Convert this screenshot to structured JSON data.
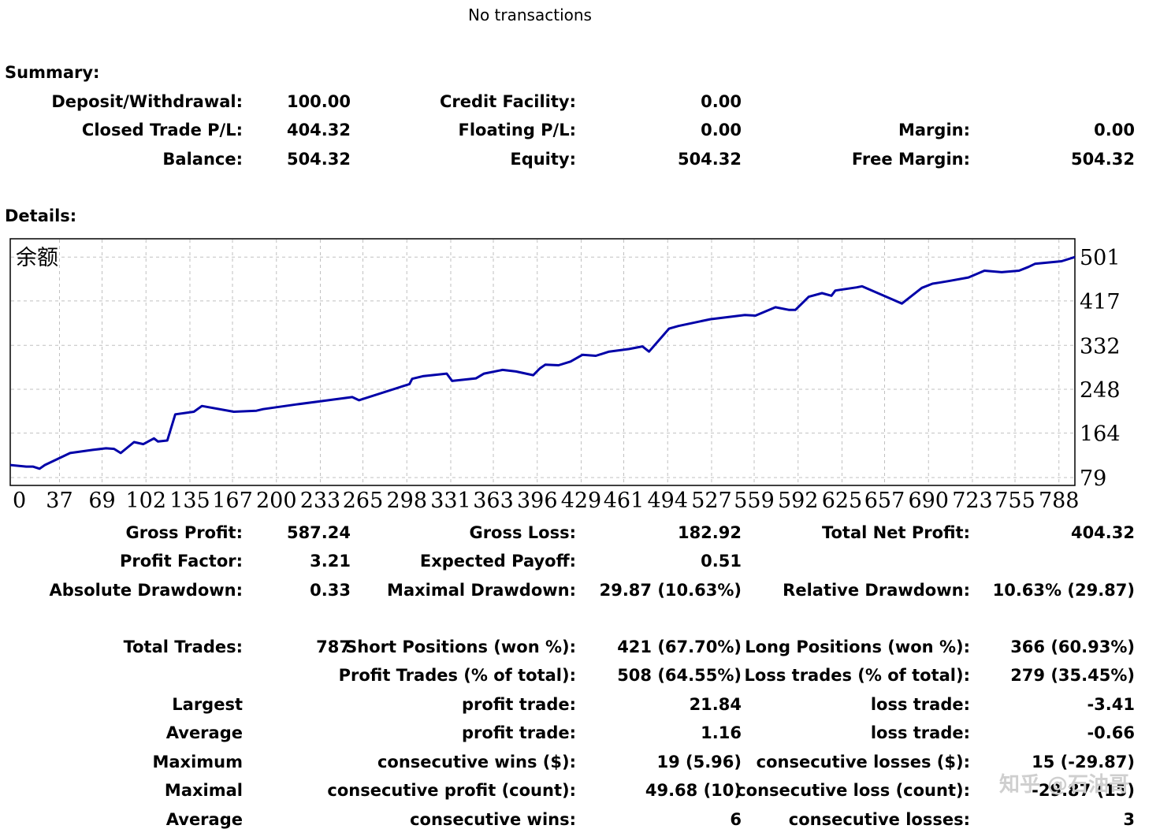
{
  "header": {
    "no_transactions": "No transactions"
  },
  "summary": {
    "title": "Summary:",
    "deposit_label": "Deposit/Withdrawal:",
    "deposit_value": "100.00",
    "credit_label": "Credit Facility:",
    "credit_value": "0.00",
    "closed_pl_label": "Closed Trade P/L:",
    "closed_pl_value": "404.32",
    "floating_pl_label": "Floating P/L:",
    "floating_pl_value": "0.00",
    "margin_label": "Margin:",
    "margin_value": "0.00",
    "balance_label": "Balance:",
    "balance_value": "504.32",
    "equity_label": "Equity:",
    "equity_value": "504.32",
    "free_margin_label": "Free Margin:",
    "free_margin_value": "504.32"
  },
  "details": {
    "title": "Details:",
    "gross_profit_label": "Gross Profit:",
    "gross_profit_value": "587.24",
    "gross_loss_label": "Gross Loss:",
    "gross_loss_value": "182.92",
    "total_net_label": "Total Net Profit:",
    "total_net_value": "404.32",
    "profit_factor_label": "Profit Factor:",
    "profit_factor_value": "3.21",
    "expected_payoff_label": "Expected Payoff:",
    "expected_payoff_value": "0.51",
    "abs_dd_label": "Absolute Drawdown:",
    "abs_dd_value": "0.33",
    "max_dd_label": "Maximal Drawdown:",
    "max_dd_value": "29.87 (10.63%)",
    "rel_dd_label": "Relative Drawdown:",
    "rel_dd_value": "10.63% (29.87)",
    "total_trades_label": "Total Trades:",
    "total_trades_value": "787",
    "short_label": "Short Positions (won %):",
    "short_value": "421 (67.70%)",
    "long_label": "Long Positions (won %):",
    "long_value": "366 (60.93%)",
    "profit_trades_label": "Profit Trades (% of total):",
    "profit_trades_value": "508 (64.55%)",
    "loss_trades_label": "Loss trades (% of total):",
    "loss_trades_value": "279 (35.45%)",
    "largest_label": "Largest",
    "largest_profit_label": "profit trade:",
    "largest_profit_value": "21.84",
    "largest_loss_label": "loss trade:",
    "largest_loss_value": "-3.41",
    "average_label": "Average",
    "avg_profit_label": "profit trade:",
    "avg_profit_value": "1.16",
    "avg_loss_label": "loss trade:",
    "avg_loss_value": "-0.66",
    "maximum_label": "Maximum",
    "max_cons_wins_label": "consecutive wins ($):",
    "max_cons_wins_value": "19 (5.96)",
    "max_cons_losses_label": "consecutive losses ($):",
    "max_cons_losses_value": "15 (-29.87)",
    "maximal_label": "Maximal",
    "maximal_cons_profit_label": "consecutive profit (count):",
    "maximal_cons_profit_value": "49.68 (10)",
    "maximal_cons_loss_label": "consecutive loss (count):",
    "maximal_cons_loss_value": "-29.87 (15)",
    "average2_label": "Average",
    "avg_cons_wins_label": "consecutive wins:",
    "avg_cons_wins_value": "6",
    "avg_cons_losses_label": "consecutive losses:",
    "avg_cons_losses_value": "3"
  },
  "watermark": "知乎 @石油哥",
  "chart_data": {
    "type": "line",
    "title": "余额",
    "line_color": "#0000a8",
    "grid": true,
    "x_ticks": [
      0,
      37,
      69,
      102,
      135,
      167,
      200,
      233,
      265,
      298,
      331,
      363,
      396,
      429,
      461,
      494,
      527,
      559,
      592,
      625,
      657,
      690,
      723,
      755,
      788
    ],
    "x_tick_labels": [
      "0",
      "37",
      "69",
      "102",
      "135",
      "167",
      "200",
      "233",
      "265",
      "298",
      "331",
      "363",
      "396",
      "429",
      "461",
      "494",
      "527",
      "559",
      "592",
      "625",
      "657",
      "690",
      "723",
      "755",
      "788"
    ],
    "y_ticks": [
      79,
      164,
      248,
      332,
      417,
      501
    ],
    "y_tick_labels": [
      "79",
      "164",
      "248",
      "332",
      "417",
      "501"
    ],
    "xlim": [
      0,
      800
    ],
    "ylim": [
      64,
      536
    ],
    "series": [
      {
        "x": [
          0,
          12,
          17,
          22,
          26,
          45,
          62,
          72,
          78,
          83,
          93,
          100,
          108,
          111,
          118,
          124,
          138,
          144,
          168,
          185,
          190,
          215,
          257,
          262,
          300,
          302,
          310,
          328,
          332,
          350,
          356,
          370,
          380,
          393,
          398,
          402,
          412,
          421,
          430,
          440,
          450,
          465,
          475,
          480,
          495,
          502,
          526,
          552,
          560,
          575,
          585,
          590,
          600,
          610,
          617,
          620,
          636,
          640,
          670,
          685,
          693,
          698,
          705,
          720,
          732,
          745,
          758,
          765,
          770,
          790,
          800
        ],
        "y": [
          103,
          100,
          100,
          96,
          103,
          126,
          132,
          135,
          134,
          126,
          147,
          143,
          154,
          148,
          150,
          200,
          205,
          216,
          205,
          207,
          210,
          219,
          233,
          227,
          258,
          268,
          273,
          278,
          264,
          269,
          278,
          285,
          282,
          275,
          288,
          295,
          294,
          301,
          314,
          312,
          320,
          325,
          330,
          320,
          364,
          369,
          382,
          390,
          389,
          405,
          400,
          400,
          425,
          432,
          427,
          437,
          443,
          445,
          412,
          442,
          450,
          452,
          455,
          462,
          475,
          472,
          475,
          482,
          488,
          493,
          501
        ]
      }
    ]
  }
}
